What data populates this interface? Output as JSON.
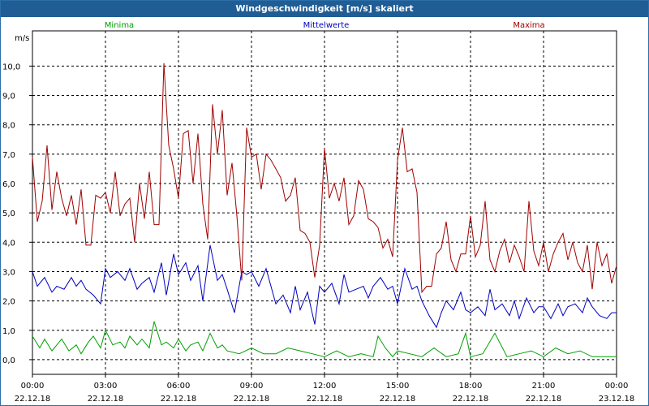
{
  "window": {
    "title": "Windgeschwindigkeit [m/s] skaliert"
  },
  "chart_data": {
    "type": "line",
    "title": "Windgeschwindigkeit [m/s] skaliert",
    "ylabel": "m/s",
    "xlabel": "",
    "ylim": [
      -0.5,
      11.2
    ],
    "yticks": [
      0.0,
      1.0,
      2.0,
      3.0,
      4.0,
      5.0,
      6.0,
      7.0,
      8.0,
      9.0,
      10.0
    ],
    "ytick_labels": [
      "0,0",
      "1,0",
      "2,0",
      "3,0",
      "4,0",
      "5,0",
      "6,0",
      "7,0",
      "8,0",
      "9,0",
      "10,0"
    ],
    "xticks": [
      {
        "time": "00:00",
        "date": "22.12.18"
      },
      {
        "time": "03:00",
        "date": "22.12.18"
      },
      {
        "time": "06:00",
        "date": "22.12.18"
      },
      {
        "time": "09:00",
        "date": "22.12.18"
      },
      {
        "time": "12:00",
        "date": "22.12.18"
      },
      {
        "time": "15:00",
        "date": "22.12.18"
      },
      {
        "time": "18:00",
        "date": "22.12.18"
      },
      {
        "time": "21:00",
        "date": "22.12.18"
      },
      {
        "time": "00:00",
        "date": "23.12.18"
      }
    ],
    "x_hours_range": [
      0,
      24
    ],
    "grid": true,
    "series": [
      {
        "name": "Minima",
        "color": "#00a000",
        "x": [
          0,
          0.3,
          0.5,
          0.8,
          1.0,
          1.2,
          1.5,
          1.8,
          2.0,
          2.3,
          2.5,
          2.8,
          3.0,
          3.3,
          3.6,
          3.8,
          4.0,
          4.3,
          4.5,
          4.8,
          5.0,
          5.3,
          5.5,
          5.8,
          6.0,
          6.3,
          6.5,
          6.8,
          7.0,
          7.3,
          7.6,
          7.8,
          8.0,
          8.5,
          9.0,
          9.5,
          10.0,
          10.5,
          11.0,
          11.5,
          12.0,
          12.5,
          13.0,
          13.5,
          14.0,
          14.2,
          14.5,
          14.8,
          15.0,
          15.5,
          16.0,
          16.5,
          17.0,
          17.5,
          17.8,
          18.0,
          18.5,
          19.0,
          19.5,
          20.0,
          20.5,
          21.0,
          21.5,
          22.0,
          22.5,
          23.0,
          23.5,
          24.0
        ],
        "values": [
          0.8,
          0.4,
          0.7,
          0.3,
          0.5,
          0.7,
          0.3,
          0.5,
          0.2,
          0.6,
          0.8,
          0.4,
          1.0,
          0.5,
          0.6,
          0.4,
          0.8,
          0.5,
          0.7,
          0.4,
          1.3,
          0.5,
          0.6,
          0.4,
          0.7,
          0.3,
          0.5,
          0.6,
          0.3,
          0.9,
          0.4,
          0.5,
          0.3,
          0.2,
          0.4,
          0.2,
          0.2,
          0.4,
          0.3,
          0.2,
          0.1,
          0.3,
          0.1,
          0.2,
          0.1,
          0.8,
          0.4,
          0.1,
          0.3,
          0.2,
          0.1,
          0.4,
          0.1,
          0.2,
          0.9,
          0.1,
          0.2,
          0.9,
          0.1,
          0.2,
          0.3,
          0.1,
          0.4,
          0.2,
          0.3,
          0.1,
          0.1,
          0.1
        ]
      },
      {
        "name": "Mittelwerte",
        "color": "#0000c0",
        "x": [
          0,
          0.2,
          0.5,
          0.8,
          1.0,
          1.3,
          1.6,
          1.8,
          2.0,
          2.2,
          2.5,
          2.8,
          3.0,
          3.2,
          3.5,
          3.8,
          4.0,
          4.3,
          4.5,
          4.8,
          5.0,
          5.3,
          5.5,
          5.8,
          6.0,
          6.3,
          6.5,
          6.8,
          7.0,
          7.3,
          7.6,
          7.8,
          8.0,
          8.3,
          8.6,
          8.8,
          9.0,
          9.3,
          9.6,
          9.8,
          10.0,
          10.3,
          10.6,
          10.8,
          11.0,
          11.3,
          11.6,
          11.8,
          12.0,
          12.3,
          12.6,
          12.8,
          13.0,
          13.3,
          13.6,
          13.8,
          14.0,
          14.3,
          14.6,
          14.8,
          15.0,
          15.3,
          15.6,
          15.8,
          16.0,
          16.3,
          16.6,
          16.8,
          17.0,
          17.3,
          17.6,
          17.8,
          18.0,
          18.3,
          18.6,
          18.8,
          19.0,
          19.3,
          19.6,
          19.8,
          20.0,
          20.3,
          20.6,
          20.8,
          21.0,
          21.3,
          21.6,
          21.8,
          22.0,
          22.3,
          22.6,
          22.8,
          23.0,
          23.3,
          23.6,
          23.8,
          24.0
        ],
        "values": [
          3.0,
          2.5,
          2.8,
          2.3,
          2.5,
          2.4,
          2.8,
          2.5,
          2.7,
          2.4,
          2.2,
          1.9,
          3.1,
          2.8,
          3.0,
          2.7,
          3.1,
          2.4,
          2.6,
          2.8,
          2.3,
          3.3,
          2.2,
          3.6,
          2.9,
          3.3,
          2.7,
          3.2,
          2.0,
          3.9,
          2.7,
          2.9,
          2.4,
          1.6,
          3.0,
          2.9,
          3.0,
          2.5,
          3.1,
          2.5,
          1.9,
          2.2,
          1.6,
          2.5,
          1.7,
          2.3,
          1.2,
          2.5,
          2.3,
          2.6,
          1.9,
          2.9,
          2.3,
          2.4,
          2.5,
          2.1,
          2.5,
          2.8,
          2.4,
          2.5,
          1.9,
          3.1,
          2.4,
          2.5,
          2.0,
          1.5,
          1.1,
          1.6,
          2.0,
          1.7,
          2.3,
          1.7,
          1.6,
          1.8,
          1.5,
          2.4,
          1.7,
          1.9,
          1.5,
          2.0,
          1.4,
          2.1,
          1.6,
          1.8,
          1.8,
          1.4,
          1.9,
          1.5,
          1.8,
          1.9,
          1.6,
          2.1,
          1.8,
          1.5,
          1.4,
          1.6,
          1.6
        ]
      },
      {
        "name": "Maxima",
        "color": "#a00000",
        "x": [
          0,
          0.2,
          0.4,
          0.6,
          0.8,
          1.0,
          1.2,
          1.4,
          1.6,
          1.8,
          2.0,
          2.2,
          2.4,
          2.6,
          2.8,
          3.0,
          3.2,
          3.4,
          3.6,
          3.8,
          4.0,
          4.2,
          4.4,
          4.6,
          4.8,
          5.0,
          5.2,
          5.4,
          5.6,
          5.8,
          6.0,
          6.2,
          6.4,
          6.6,
          6.8,
          7.0,
          7.2,
          7.4,
          7.6,
          7.8,
          8.0,
          8.2,
          8.4,
          8.6,
          8.8,
          9.0,
          9.2,
          9.4,
          9.6,
          9.8,
          10.0,
          10.2,
          10.4,
          10.6,
          10.8,
          11.0,
          11.2,
          11.4,
          11.6,
          11.8,
          12.0,
          12.2,
          12.4,
          12.6,
          12.8,
          13.0,
          13.2,
          13.4,
          13.6,
          13.8,
          14.0,
          14.2,
          14.4,
          14.6,
          14.8,
          15.0,
          15.2,
          15.4,
          15.6,
          15.8,
          16.0,
          16.2,
          16.4,
          16.6,
          16.8,
          17.0,
          17.2,
          17.4,
          17.6,
          17.8,
          18.0,
          18.2,
          18.4,
          18.6,
          18.8,
          19.0,
          19.2,
          19.4,
          19.6,
          19.8,
          20.0,
          20.2,
          20.4,
          20.6,
          20.8,
          21.0,
          21.2,
          21.4,
          21.6,
          21.8,
          22.0,
          22.2,
          22.4,
          22.6,
          22.8,
          23.0,
          23.2,
          23.4,
          23.6,
          23.8,
          24.0
        ],
        "values": [
          6.9,
          4.7,
          5.4,
          7.3,
          5.1,
          6.4,
          5.5,
          4.9,
          5.6,
          4.6,
          5.8,
          3.9,
          3.9,
          5.6,
          5.5,
          5.7,
          5.0,
          6.4,
          4.9,
          5.3,
          5.5,
          4.0,
          6.0,
          4.8,
          6.4,
          4.6,
          4.6,
          10.1,
          7.3,
          6.5,
          5.5,
          7.7,
          7.8,
          6.0,
          7.7,
          5.3,
          4.1,
          8.7,
          7.0,
          8.5,
          5.6,
          6.7,
          4.9,
          2.7,
          7.9,
          6.9,
          7.0,
          5.8,
          7.0,
          6.8,
          6.5,
          6.2,
          5.4,
          5.6,
          6.2,
          4.4,
          4.3,
          4.0,
          2.8,
          3.9,
          7.2,
          5.5,
          6.0,
          5.4,
          6.2,
          4.6,
          4.9,
          6.1,
          5.8,
          4.8,
          4.7,
          4.5,
          3.8,
          4.1,
          3.5,
          6.8,
          7.9,
          6.4,
          6.5,
          5.7,
          2.3,
          2.5,
          2.5,
          3.6,
          3.8,
          4.7,
          3.4,
          3.0,
          3.6,
          3.6,
          4.9,
          3.5,
          3.9,
          5.4,
          3.4,
          3.0,
          3.7,
          4.1,
          3.3,
          3.9,
          3.5,
          3.0,
          5.4,
          3.7,
          3.2,
          4.0,
          3.0,
          3.6,
          4.0,
          4.3,
          3.4,
          4.0,
          3.3,
          3.0,
          3.9,
          2.4,
          4.0,
          3.2,
          3.6,
          2.6,
          3.2
        ]
      }
    ]
  }
}
